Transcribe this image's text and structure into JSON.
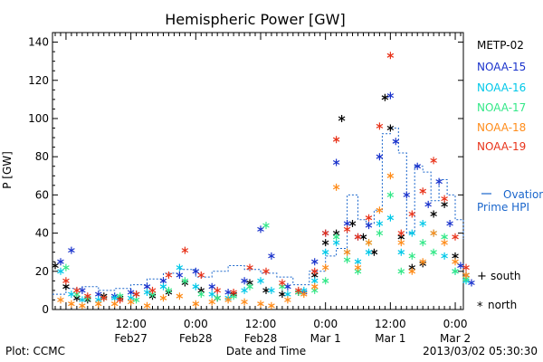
{
  "chart_data": {
    "type": "scatter",
    "title": "Hemispheric Power [GW]",
    "ylabel": "P [GW]",
    "xlabel": "Date and Time",
    "ylim": [
      0,
      145
    ],
    "yticks": [
      0,
      20,
      40,
      60,
      80,
      100,
      120,
      140
    ],
    "xlim_hours": [
      -2.5,
      73.5
    ],
    "xticks": [
      {
        "hour": 12,
        "time": "12:00",
        "date": "Feb27"
      },
      {
        "hour": 24,
        "time": "0:00",
        "date": "Feb28"
      },
      {
        "hour": 36,
        "time": "12:00",
        "date": "Feb28"
      },
      {
        "hour": 48,
        "time": "0:00",
        "date": "Mar 1"
      },
      {
        "hour": 60,
        "time": "12:00",
        "date": "Mar 1"
      },
      {
        "hour": 72,
        "time": "0:00",
        "date": "Mar 2"
      }
    ],
    "series": [
      {
        "name": "METP-02",
        "color": "#000000",
        "points": [
          [
            -2,
            23
          ],
          [
            0,
            12
          ],
          [
            2,
            6
          ],
          [
            4,
            5
          ],
          [
            7,
            7
          ],
          [
            10,
            6
          ],
          [
            13,
            8
          ],
          [
            16,
            7
          ],
          [
            19,
            9
          ],
          [
            22,
            14
          ],
          [
            25,
            10
          ],
          [
            28,
            6
          ],
          [
            31,
            8
          ],
          [
            34,
            14
          ],
          [
            37,
            10
          ],
          [
            40,
            8
          ],
          [
            43,
            9
          ],
          [
            46,
            18
          ],
          [
            48,
            35
          ],
          [
            50,
            40
          ],
          [
            51,
            100
          ],
          [
            53,
            45
          ],
          [
            55,
            38
          ],
          [
            57,
            30
          ],
          [
            59,
            111
          ],
          [
            60,
            95
          ],
          [
            62,
            38
          ],
          [
            64,
            22
          ],
          [
            66,
            24
          ],
          [
            68,
            50
          ],
          [
            70,
            55
          ],
          [
            72,
            28
          ],
          [
            74,
            18
          ]
        ]
      },
      {
        "name": "NOAA-15",
        "color": "#1a33cc",
        "points": [
          [
            -1,
            25
          ],
          [
            1,
            31
          ],
          [
            3,
            10
          ],
          [
            6,
            8
          ],
          [
            9,
            7
          ],
          [
            12,
            9
          ],
          [
            15,
            12
          ],
          [
            18,
            15
          ],
          [
            21,
            18
          ],
          [
            24,
            20
          ],
          [
            27,
            12
          ],
          [
            30,
            9
          ],
          [
            33,
            15
          ],
          [
            36,
            42
          ],
          [
            38,
            28
          ],
          [
            41,
            12
          ],
          [
            44,
            9
          ],
          [
            46,
            25
          ],
          [
            48,
            40
          ],
          [
            50,
            77
          ],
          [
            52,
            45
          ],
          [
            54,
            38
          ],
          [
            56,
            44
          ],
          [
            58,
            80
          ],
          [
            60,
            112
          ],
          [
            61,
            88
          ],
          [
            63,
            60
          ],
          [
            65,
            75
          ],
          [
            67,
            55
          ],
          [
            69,
            67
          ],
          [
            71,
            45
          ],
          [
            73,
            23
          ],
          [
            75,
            14
          ]
        ]
      },
      {
        "name": "NOAA-16",
        "color": "#00c8e8",
        "points": [
          [
            -1,
            20
          ],
          [
            1,
            8
          ],
          [
            3,
            5
          ],
          [
            6,
            5
          ],
          [
            9,
            6
          ],
          [
            12,
            6
          ],
          [
            15,
            9
          ],
          [
            18,
            12
          ],
          [
            21,
            22
          ],
          [
            24,
            12
          ],
          [
            27,
            8
          ],
          [
            30,
            6
          ],
          [
            33,
            10
          ],
          [
            36,
            15
          ],
          [
            38,
            10
          ],
          [
            41,
            8
          ],
          [
            44,
            10
          ],
          [
            46,
            15
          ],
          [
            48,
            30
          ],
          [
            50,
            35
          ],
          [
            52,
            30
          ],
          [
            54,
            25
          ],
          [
            56,
            30
          ],
          [
            58,
            45
          ],
          [
            60,
            48
          ],
          [
            62,
            30
          ],
          [
            64,
            40
          ],
          [
            66,
            45
          ],
          [
            68,
            40
          ],
          [
            70,
            28
          ],
          [
            72,
            20
          ],
          [
            74,
            15
          ]
        ]
      },
      {
        "name": "NOAA-17",
        "color": "#33e888",
        "points": [
          [
            0,
            22
          ],
          [
            2,
            8
          ],
          [
            4,
            6
          ],
          [
            7,
            6
          ],
          [
            10,
            7
          ],
          [
            13,
            5
          ],
          [
            16,
            8
          ],
          [
            19,
            10
          ],
          [
            22,
            15
          ],
          [
            25,
            8
          ],
          [
            28,
            6
          ],
          [
            31,
            7
          ],
          [
            34,
            12
          ],
          [
            37,
            44
          ],
          [
            40,
            12
          ],
          [
            43,
            9
          ],
          [
            46,
            10
          ],
          [
            48,
            15
          ],
          [
            50,
            38
          ],
          [
            52,
            26
          ],
          [
            54,
            20
          ],
          [
            56,
            35
          ],
          [
            58,
            40
          ],
          [
            60,
            60
          ],
          [
            62,
            20
          ],
          [
            64,
            28
          ],
          [
            66,
            35
          ],
          [
            68,
            30
          ],
          [
            70,
            38
          ],
          [
            72,
            20
          ],
          [
            74,
            16
          ]
        ]
      },
      {
        "name": "NOAA-18",
        "color": "#ff8c1a",
        "points": [
          [
            -1,
            5
          ],
          [
            1,
            3
          ],
          [
            3,
            2
          ],
          [
            6,
            3
          ],
          [
            9,
            3
          ],
          [
            12,
            4
          ],
          [
            15,
            2
          ],
          [
            18,
            6
          ],
          [
            21,
            7
          ],
          [
            24,
            3
          ],
          [
            27,
            4
          ],
          [
            30,
            5
          ],
          [
            33,
            4
          ],
          [
            36,
            3
          ],
          [
            38,
            2
          ],
          [
            41,
            5
          ],
          [
            44,
            8
          ],
          [
            46,
            12
          ],
          [
            48,
            22
          ],
          [
            50,
            64
          ],
          [
            52,
            30
          ],
          [
            54,
            22
          ],
          [
            56,
            35
          ],
          [
            58,
            52
          ],
          [
            60,
            70
          ],
          [
            62,
            35
          ],
          [
            64,
            20
          ],
          [
            66,
            25
          ],
          [
            68,
            40
          ],
          [
            70,
            35
          ],
          [
            72,
            25
          ],
          [
            74,
            18
          ]
        ]
      },
      {
        "name": "NOAA-19",
        "color": "#e8331a",
        "points": [
          [
            0,
            15
          ],
          [
            2,
            10
          ],
          [
            4,
            7
          ],
          [
            7,
            6
          ],
          [
            10,
            5
          ],
          [
            13,
            8
          ],
          [
            16,
            10
          ],
          [
            19,
            18
          ],
          [
            22,
            31
          ],
          [
            25,
            18
          ],
          [
            28,
            10
          ],
          [
            31,
            9
          ],
          [
            34,
            22
          ],
          [
            37,
            20
          ],
          [
            40,
            14
          ],
          [
            43,
            10
          ],
          [
            46,
            20
          ],
          [
            48,
            40
          ],
          [
            50,
            89
          ],
          [
            52,
            42
          ],
          [
            54,
            38
          ],
          [
            56,
            48
          ],
          [
            58,
            96
          ],
          [
            60,
            133
          ],
          [
            62,
            40
          ],
          [
            64,
            50
          ],
          [
            66,
            62
          ],
          [
            68,
            78
          ],
          [
            70,
            58
          ],
          [
            72,
            38
          ],
          [
            74,
            22
          ]
        ]
      }
    ],
    "ovation_steps": [
      [
        -2.5,
        8
      ],
      [
        0,
        11
      ],
      [
        3,
        12
      ],
      [
        6,
        10
      ],
      [
        9,
        11
      ],
      [
        12,
        13
      ],
      [
        15,
        16
      ],
      [
        18,
        19
      ],
      [
        21,
        21
      ],
      [
        24,
        17
      ],
      [
        27,
        20
      ],
      [
        30,
        23
      ],
      [
        33,
        21
      ],
      [
        36,
        19
      ],
      [
        39,
        17
      ],
      [
        42,
        13
      ],
      [
        45,
        20
      ],
      [
        48,
        28
      ],
      [
        50,
        32
      ],
      [
        52,
        60
      ],
      [
        54,
        47
      ],
      [
        55.5,
        45
      ],
      [
        57,
        52
      ],
      [
        58.5,
        92
      ],
      [
        60,
        95
      ],
      [
        61.5,
        82
      ],
      [
        63,
        40
      ],
      [
        64.5,
        75
      ],
      [
        66,
        72
      ],
      [
        67.5,
        57
      ],
      [
        69,
        68
      ],
      [
        70.5,
        60
      ],
      [
        72,
        47
      ],
      [
        73.5,
        37
      ]
    ],
    "ovation_color": "#1a66cc",
    "legend": {
      "placement": "right",
      "entries": [
        {
          "label": "METP-02",
          "color": "#000000"
        },
        {
          "label": "NOAA-15",
          "color": "#1a33cc"
        },
        {
          "label": "NOAA-16",
          "color": "#00c8e8"
        },
        {
          "label": "NOAA-17",
          "color": "#33e888"
        },
        {
          "label": "NOAA-18",
          "color": "#ff8c1a"
        },
        {
          "label": "NOAA-19",
          "color": "#e8331a"
        }
      ],
      "ovation_line1": "Ovation",
      "ovation_line2": "Prime HPI",
      "south": "south",
      "north": "north"
    },
    "grid": false
  },
  "footer": {
    "left": "Plot: CCMC",
    "right": "2013/03/02 05:30:30"
  }
}
